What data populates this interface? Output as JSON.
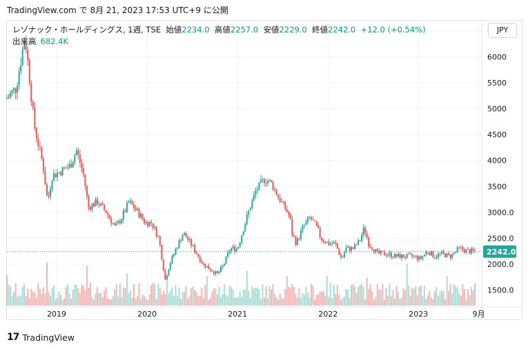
{
  "header": {
    "attribution": "TradingView.com で 8月 21, 2023 17:53 UTC+9 に公開"
  },
  "legend": {
    "symbol": "レゾナック・ホールディングス, 1週, TSE",
    "open_label": "始値",
    "open": "2234.0",
    "high_label": "高値",
    "high": "2257.0",
    "low_label": "安値",
    "low": "2229.0",
    "close_label": "終値",
    "close": "2242.0",
    "change": "+12.0 (+0.54%)",
    "volume_label": "出来高",
    "volume": "682.4K"
  },
  "currency_button": "JPY",
  "footer": {
    "logo_mark": "17",
    "brand": "TradingView"
  },
  "colors": {
    "up": "#26a69a",
    "down": "#ef5350",
    "up_vol": "#a7ddd5",
    "down_vol": "#f5b4b2",
    "grid": "#f0f3fa",
    "price_line": "#26a69a"
  },
  "chart_data": {
    "type": "candlestick",
    "title": "レゾナック・ホールディングス, 1週, TSE",
    "y_tick_labels": [
      "1500.0",
      "2000.0",
      "2500.0",
      "3000.0",
      "3500",
      "4000",
      "4500",
      "5000",
      "5500",
      "6000",
      "6500"
    ],
    "x_tick_labels": [
      "2019",
      "2020",
      "2021",
      "2022",
      "2023",
      "9月"
    ],
    "last_price_label": "2242.0",
    "ylim": [
      1200,
      6700
    ],
    "x_range": [
      2018.45,
      2023.7
    ],
    "grid": true,
    "anchors_date_close": [
      [
        2018.45,
        5200
      ],
      [
        2018.55,
        5400
      ],
      [
        2018.6,
        5900
      ],
      [
        2018.65,
        6400
      ],
      [
        2018.7,
        5600
      ],
      [
        2018.75,
        4700
      ],
      [
        2018.8,
        4300
      ],
      [
        2018.85,
        3900
      ],
      [
        2018.9,
        3200
      ],
      [
        2018.95,
        3700
      ],
      [
        2019.05,
        3800
      ],
      [
        2019.15,
        3900
      ],
      [
        2019.22,
        4200
      ],
      [
        2019.3,
        3700
      ],
      [
        2019.35,
        3100
      ],
      [
        2019.45,
        3200
      ],
      [
        2019.55,
        3000
      ],
      [
        2019.65,
        2700
      ],
      [
        2019.72,
        2900
      ],
      [
        2019.8,
        3200
      ],
      [
        2019.9,
        3000
      ],
      [
        2019.98,
        2800
      ],
      [
        2020.05,
        2800
      ],
      [
        2020.13,
        2500
      ],
      [
        2020.2,
        1700
      ],
      [
        2020.25,
        2000
      ],
      [
        2020.32,
        2300
      ],
      [
        2020.4,
        2600
      ],
      [
        2020.48,
        2400
      ],
      [
        2020.55,
        2200
      ],
      [
        2020.62,
        2000
      ],
      [
        2020.7,
        1900
      ],
      [
        2020.78,
        1800
      ],
      [
        2020.85,
        2000
      ],
      [
        2020.92,
        2300
      ],
      [
        2021.0,
        2300
      ],
      [
        2021.05,
        2600
      ],
      [
        2021.12,
        3000
      ],
      [
        2021.2,
        3400
      ],
      [
        2021.3,
        3650
      ],
      [
        2021.38,
        3550
      ],
      [
        2021.45,
        3300
      ],
      [
        2021.52,
        3100
      ],
      [
        2021.58,
        2900
      ],
      [
        2021.6,
        2600
      ],
      [
        2021.65,
        2400
      ],
      [
        2021.72,
        2700
      ],
      [
        2021.8,
        2900
      ],
      [
        2021.88,
        2700
      ],
      [
        2021.92,
        2500
      ],
      [
        2022.0,
        2400
      ],
      [
        2022.08,
        2400
      ],
      [
        2022.15,
        2100
      ],
      [
        2022.2,
        2300
      ],
      [
        2022.28,
        2300
      ],
      [
        2022.35,
        2450
      ],
      [
        2022.4,
        2700
      ],
      [
        2022.45,
        2400
      ],
      [
        2022.55,
        2200
      ],
      [
        2022.65,
        2200
      ],
      [
        2022.75,
        2150
      ],
      [
        2022.85,
        2150
      ],
      [
        2022.95,
        2150
      ],
      [
        2023.02,
        2100
      ],
      [
        2023.1,
        2250
      ],
      [
        2023.18,
        2150
      ],
      [
        2023.25,
        2200
      ],
      [
        2023.35,
        2150
      ],
      [
        2023.45,
        2300
      ],
      [
        2023.55,
        2250
      ],
      [
        2023.63,
        2242
      ]
    ]
  }
}
